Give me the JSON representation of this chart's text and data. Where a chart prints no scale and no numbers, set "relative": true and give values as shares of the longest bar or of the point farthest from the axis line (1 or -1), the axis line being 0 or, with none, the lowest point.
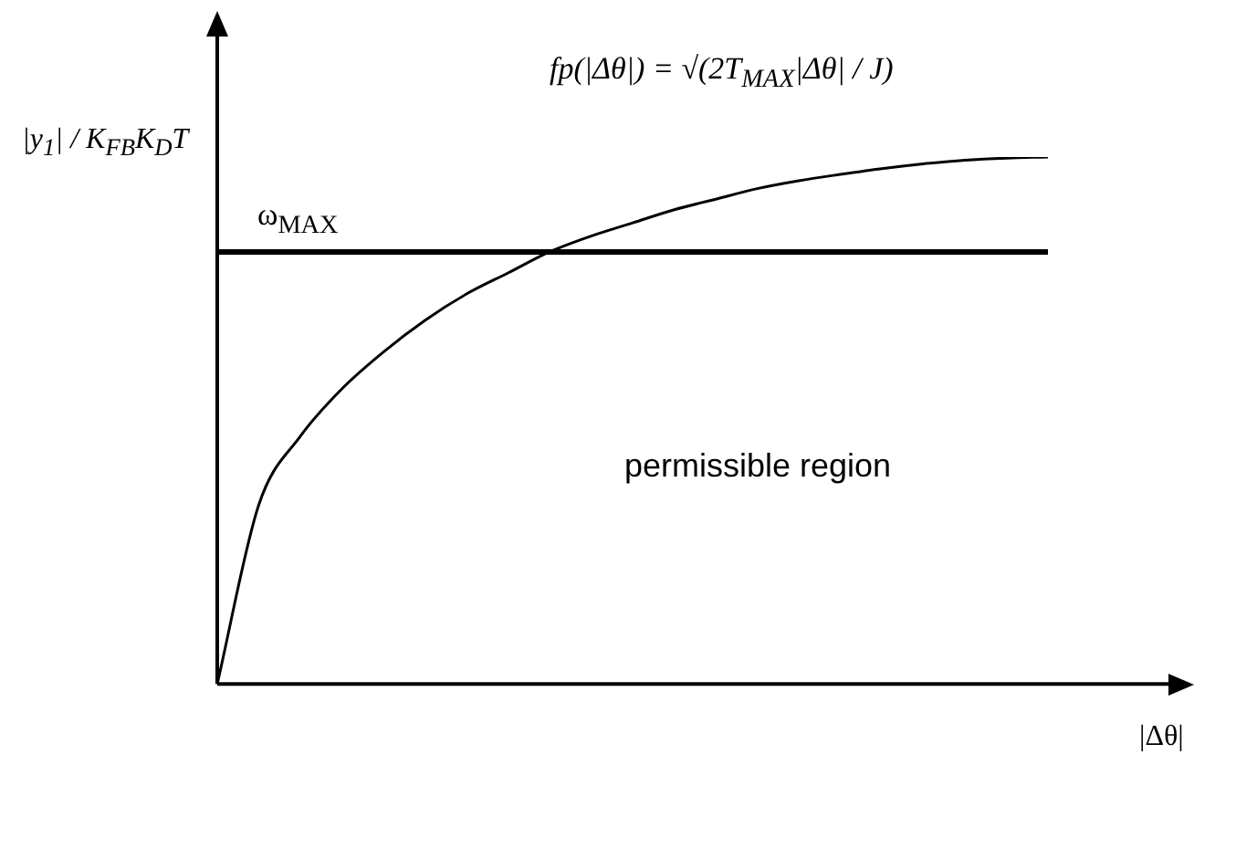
{
  "chart_data": {
    "type": "line",
    "relative": true,
    "xlabel": "|Δθ|",
    "ylabel": "|y$_{1}$| / K$_{FB}$K$_{D}$T",
    "legend": false,
    "marker": "none",
    "line_style": "solid",
    "categories": [
      null,
      null,
      null,
      null,
      null,
      null,
      null,
      null,
      null,
      null,
      null,
      null,
      null,
      null,
      null,
      null,
      null,
      null,
      null,
      null,
      null
    ],
    "series": [
      {
        "name": "fp(|Δθ|) = √(2T$_{MAX}$|Δθ| / J)",
        "color": "#000000",
        "values": [
          0,
          0.34,
          0.47,
          0.56,
          0.63,
          0.69,
          0.74,
          0.78,
          0.82,
          0.85,
          0.875,
          0.9,
          0.92,
          0.94,
          0.955,
          0.967,
          0.978,
          0.987,
          0.994,
          0.998,
          1
        ]
      },
      {
        "name": "ω$_{MAX}$",
        "color": "#000000",
        "values": [
          0.82,
          0.82,
          0.82,
          0.82,
          0.82,
          0.82,
          0.82,
          0.82,
          0.82,
          0.82,
          0.82,
          0.82,
          0.82,
          0.82,
          0.82,
          0.82,
          0.82,
          0.82,
          0.82,
          0.82,
          0.82
        ]
      }
    ],
    "annotations": [
      "permissible region"
    ]
  }
}
